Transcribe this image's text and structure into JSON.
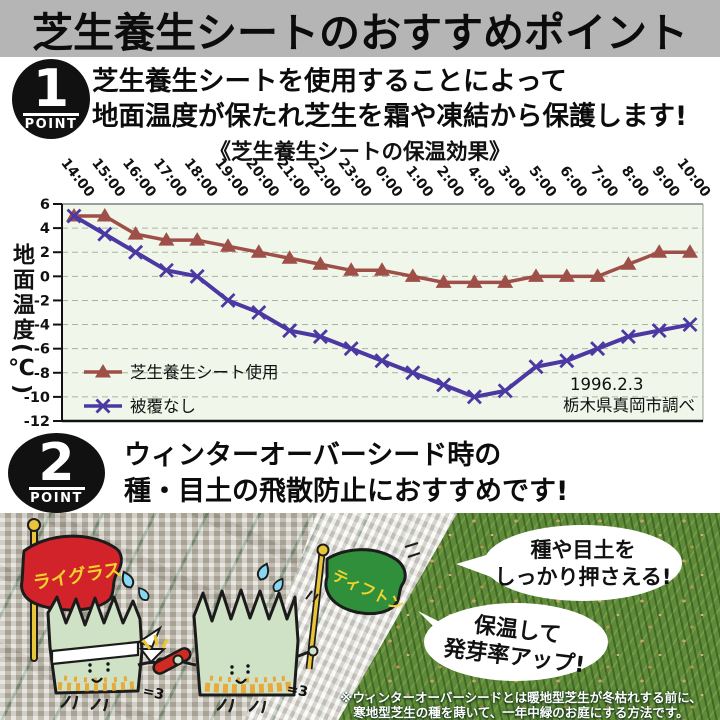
{
  "header": {
    "title": "芝生養生シートのおすすめポイント"
  },
  "point1": {
    "number": "1",
    "label": "POINT",
    "line1": "芝生養生シートを使用することによって",
    "line2": "地面温度が保たれ芝生を霜や凍結から保護します!"
  },
  "chart_data": {
    "type": "line",
    "title": "《芝生養生シートの保温効果》",
    "ylabel": "地面温度(℃)",
    "ylim": [
      -12,
      6
    ],
    "ytick_step": 2,
    "grid": "dashed-horizontal",
    "legend_position": "inside-bottom-left",
    "plot_bg": "#f0f6e9",
    "categories": [
      "14:00",
      "15:00",
      "16:00",
      "17:00",
      "18:00",
      "19:00",
      "20:00",
      "21:00",
      "22:00",
      "23:00",
      "0:00",
      "1:00",
      "2:00",
      "4:00",
      "3:00",
      "5:00",
      "6:00",
      "7:00",
      "8:00",
      "9:00",
      "10:00"
    ],
    "series": [
      {
        "name": "芝生養生シート使用",
        "color": "#9e4f48",
        "marker": "triangle",
        "values": [
          5,
          5,
          3.5,
          3,
          3,
          2.5,
          2,
          1.5,
          1,
          0.5,
          0.5,
          0,
          -0.5,
          -0.5,
          -0.5,
          0,
          0,
          0,
          1,
          2,
          2
        ]
      },
      {
        "name": "被覆なし",
        "color": "#4b38a2",
        "marker": "x",
        "values": [
          5,
          3.5,
          2,
          0.5,
          0,
          -2,
          -3,
          -4.5,
          -5,
          -6,
          -7,
          -8,
          -9,
          -10,
          -9.5,
          -7.5,
          -7,
          -6,
          -5,
          -4.5,
          -4
        ]
      }
    ],
    "annotation": [
      "1996.2.3",
      "栃木県真岡市調べ"
    ]
  },
  "point2": {
    "number": "2",
    "label": "POINT",
    "line1": "ウィンターオーバーシード時の",
    "line2": "種・目土の飛散防止におすすめです!"
  },
  "photo": {
    "flag_left": "ライグラス",
    "flag_right": "ティフトン",
    "bubble1_line1": "種や目土を",
    "bubble1_line2": "しっかり押さえる!",
    "bubble2_line1": "保温して",
    "bubble2_line2": "発芽率アップ!",
    "motion_mark": "=3",
    "footnote_line1": "※ウィンターオーバーシードとは暖地型芝生が冬枯れする前に、",
    "footnote_line2": "寒地型芝生の種を蒔いて、一年中緑のお庭にする方法です。"
  }
}
